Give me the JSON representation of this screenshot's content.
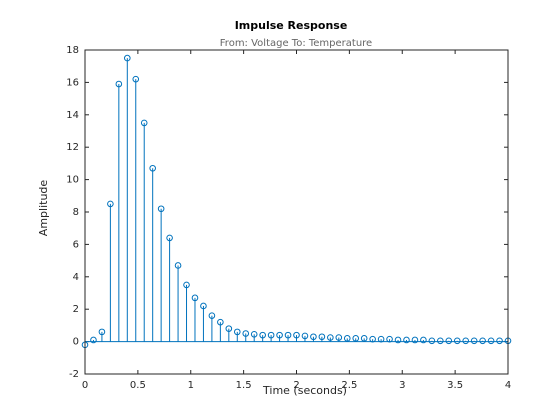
{
  "chart_data": {
    "type": "stem",
    "title": "Impulse Response",
    "subtitle": "From: Voltage  To: Temperature",
    "x_label": "Time (seconds)",
    "y_label": "Amplitude",
    "color": "#0072bd",
    "x": [
      0,
      0.08,
      0.16,
      0.24,
      0.32,
      0.4,
      0.48,
      0.56,
      0.64,
      0.72,
      0.8,
      0.88,
      0.96,
      1.04,
      1.12,
      1.2,
      1.28,
      1.36,
      1.44,
      1.52,
      1.6,
      1.68,
      1.76,
      1.84,
      1.92,
      2,
      2.08,
      2.16,
      2.24,
      2.32,
      2.4,
      2.48,
      2.56,
      2.64,
      2.72,
      2.8,
      2.88,
      2.96,
      3.04,
      3.12,
      3.2,
      3.28,
      3.36,
      3.44,
      3.52,
      3.6,
      3.68,
      3.76,
      3.84,
      3.92,
      4
    ],
    "values": [
      -0.2,
      0.1,
      0.6,
      8.5,
      15.9,
      17.5,
      16.2,
      13.5,
      10.7,
      8.2,
      6.4,
      4.7,
      3.5,
      2.7,
      2.2,
      1.6,
      1.2,
      0.8,
      0.6,
      0.5,
      0.45,
      0.4,
      0.4,
      0.4,
      0.4,
      0.4,
      0.35,
      0.3,
      0.3,
      0.25,
      0.25,
      0.2,
      0.2,
      0.2,
      0.15,
      0.15,
      0.15,
      0.1,
      0.1,
      0.1,
      0.1,
      0.05,
      0.05,
      0.05,
      0.05,
      0.05,
      0.05,
      0.05,
      0.05,
      0.05,
      0.05
    ],
    "xlim": [
      0,
      4
    ],
    "xticks": [
      0,
      0.5,
      1,
      1.5,
      2,
      2.5,
      3,
      3.5,
      4
    ],
    "ylim": [
      -2,
      18
    ],
    "yticks": [
      -2,
      0,
      2,
      4,
      6,
      8,
      10,
      12,
      14,
      16,
      18
    ],
    "grid": false
  }
}
